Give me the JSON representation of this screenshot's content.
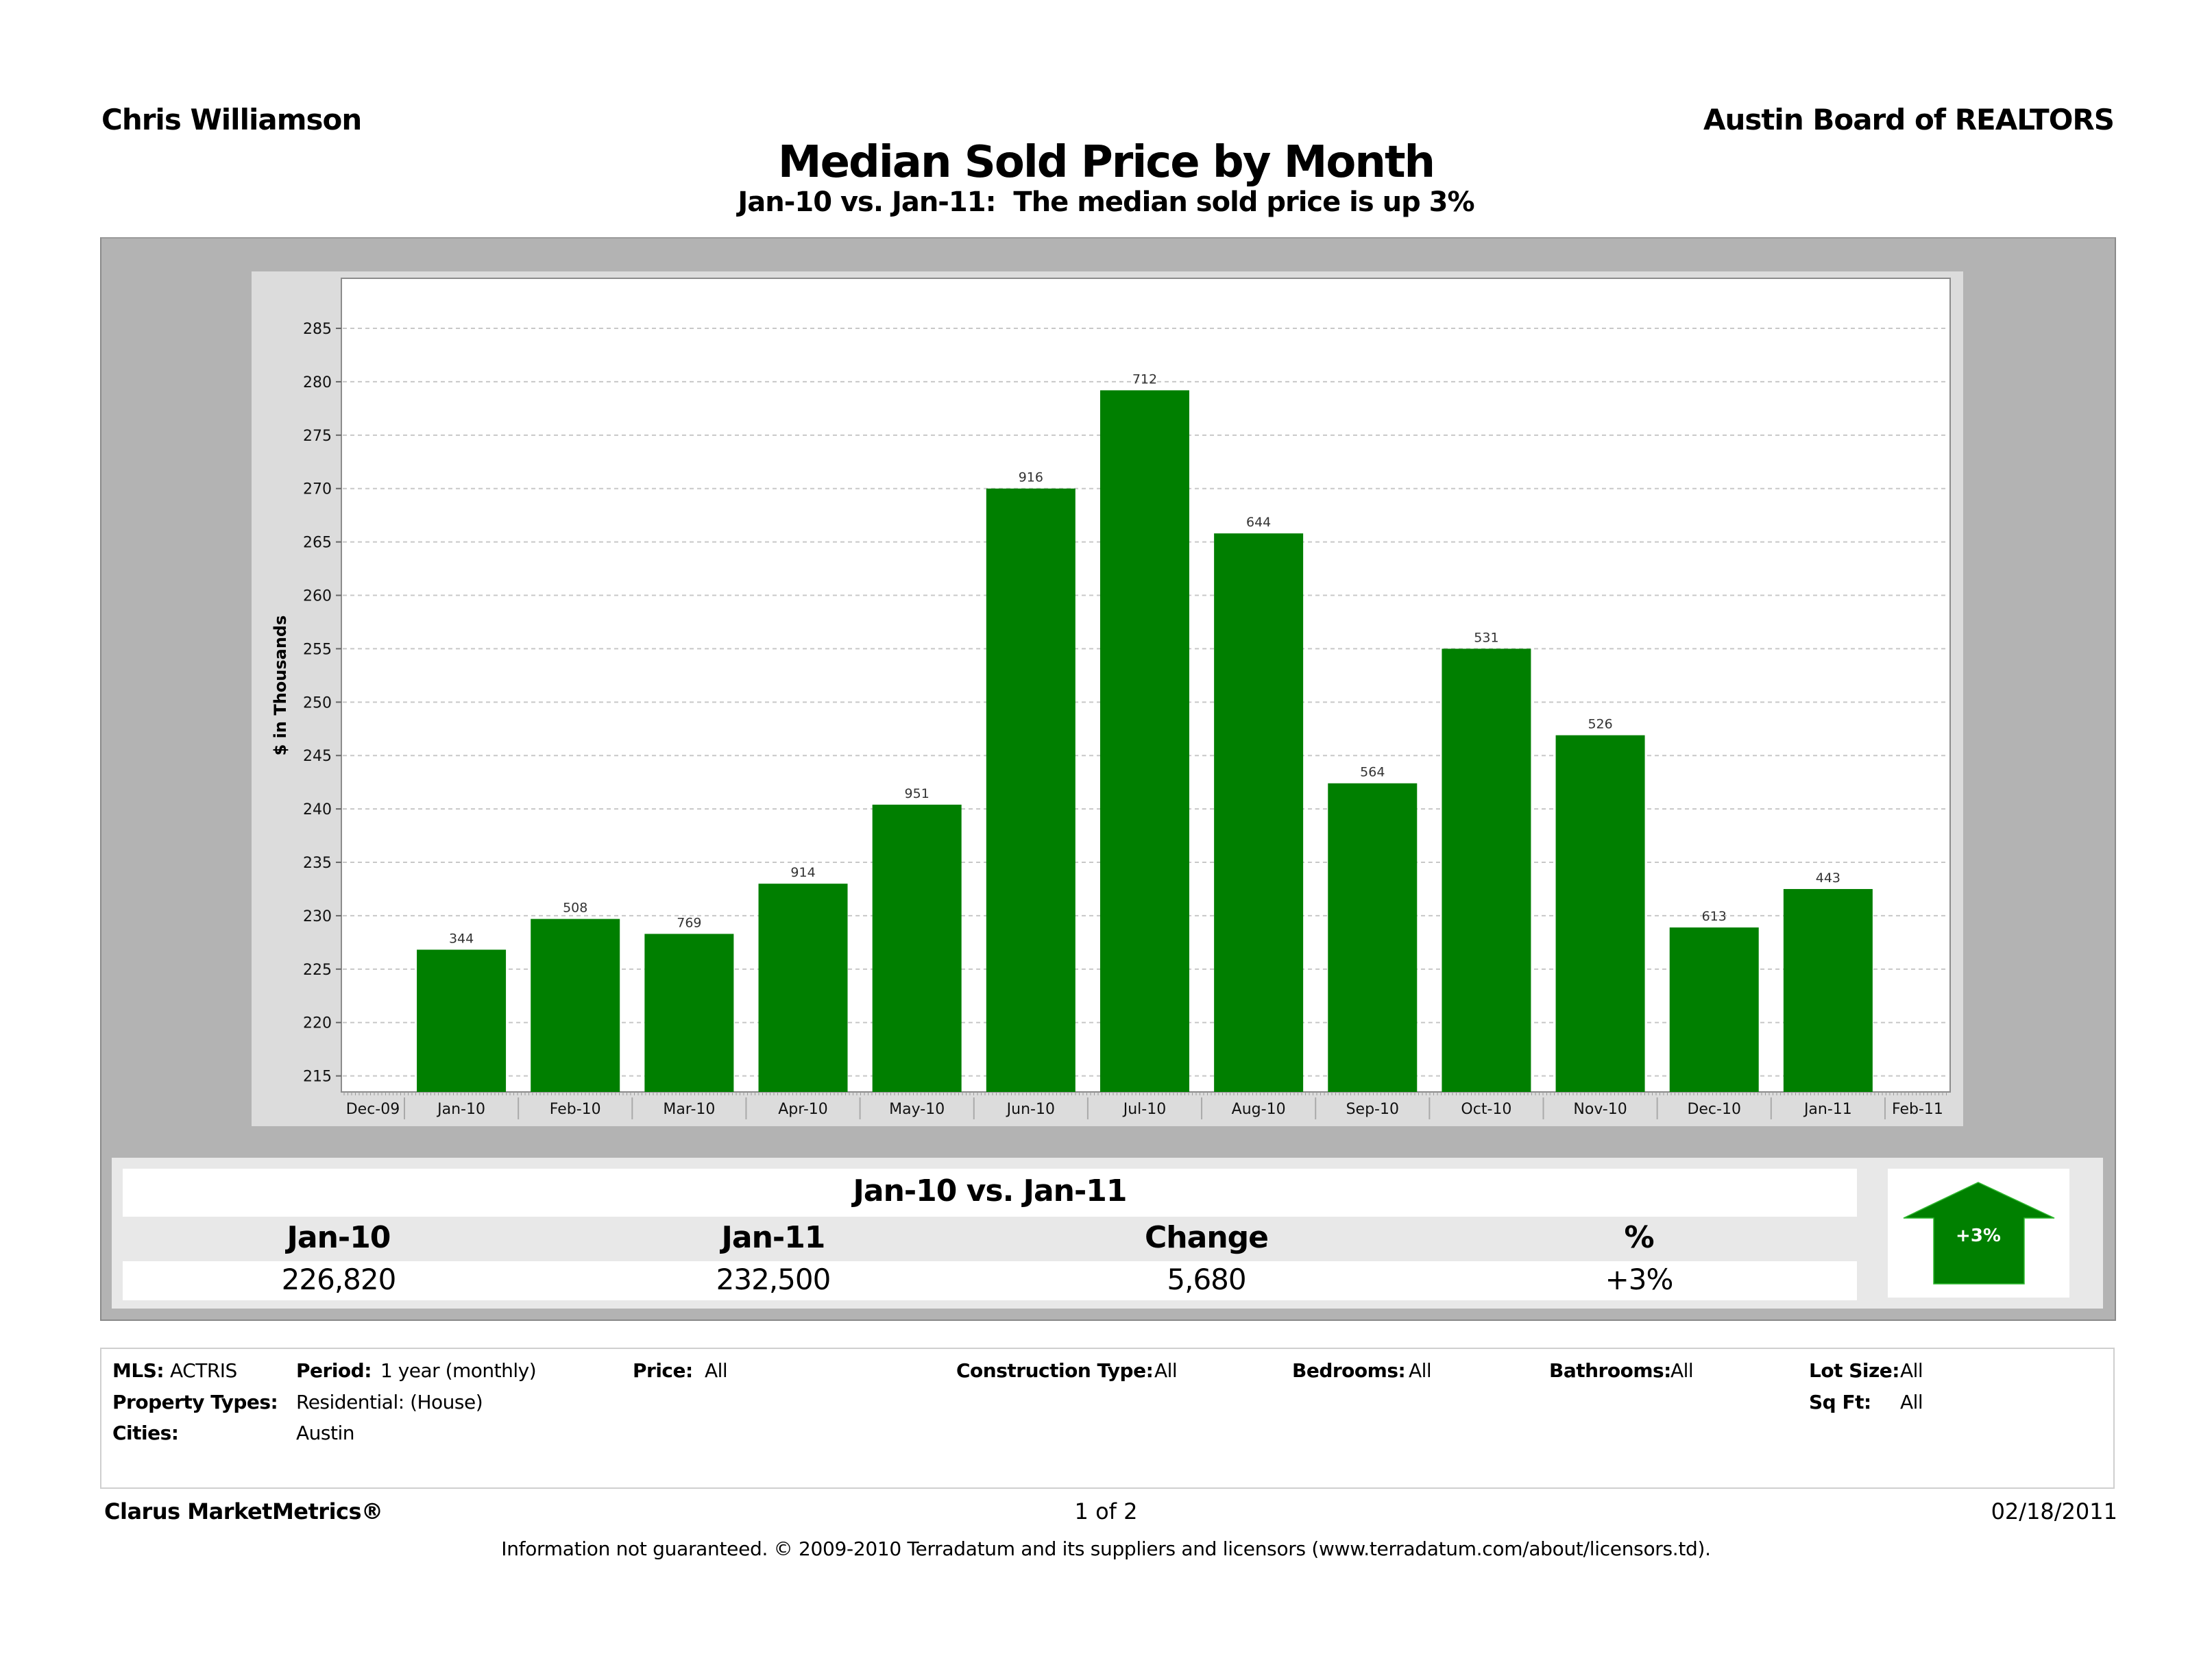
{
  "header": {
    "author": "Chris Williamson",
    "organization": "Austin Board of REALTORS",
    "title": "Median Sold Price by Month",
    "subtitle": "Jan-10 vs. Jan-11:  The median sold price is up 3%"
  },
  "chart_data": {
    "type": "bar",
    "title": "Median Sold Price by Month",
    "xlabel": "",
    "ylabel": "$ in Thousands",
    "ylim": [
      213.5,
      288
    ],
    "grid": true,
    "yticks": [
      215,
      220,
      225,
      230,
      235,
      240,
      245,
      250,
      255,
      260,
      265,
      270,
      275,
      280,
      285
    ],
    "xtick_labels": [
      "Dec-09",
      "Jan-10",
      "Feb-10",
      "Mar-10",
      "Apr-10",
      "May-10",
      "Jun-10",
      "Jul-10",
      "Aug-10",
      "Sep-10",
      "Oct-10",
      "Nov-10",
      "Dec-10",
      "Jan-11",
      "Feb-11"
    ],
    "categories": [
      "Jan-10",
      "Feb-10",
      "Mar-10",
      "Apr-10",
      "May-10",
      "Jun-10",
      "Jul-10",
      "Aug-10",
      "Sep-10",
      "Oct-10",
      "Nov-10",
      "Dec-10",
      "Jan-11"
    ],
    "values": [
      226.82,
      229.7,
      228.3,
      233.0,
      240.4,
      270.0,
      279.2,
      265.8,
      242.4,
      255.0,
      246.9,
      228.9,
      232.5
    ],
    "bar_labels": [
      "344",
      "508",
      "769",
      "914",
      "951",
      "916",
      "712",
      "644",
      "564",
      "531",
      "526",
      "613",
      "443"
    ],
    "bar_color": "#007f00"
  },
  "summary": {
    "title": "Jan-10 vs. Jan-11",
    "headers": [
      "Jan-10",
      "Jan-11",
      "Change",
      "%"
    ],
    "values": [
      "226,820",
      "232,500",
      "5,680",
      "+3%"
    ],
    "badge": "+3%",
    "badge_color": "#008000"
  },
  "filters": {
    "mls_label": "MLS:",
    "mls_value": "ACTRIS",
    "period_label": "Period:",
    "period_value": "1 year (monthly)",
    "price_label": "Price:",
    "price_value": "All",
    "construction_label": "Construction Type:",
    "construction_value": "All",
    "bedrooms_label": "Bedrooms:",
    "bedrooms_value": "All",
    "bathrooms_label": "Bathrooms:",
    "bathrooms_value": "All",
    "lotsize_label": "Lot Size:",
    "lotsize_value": "All",
    "sqft_label": "Sq Ft:",
    "sqft_value": "All",
    "proptypes_label": "Property Types:",
    "proptypes_value": "Residential: (House)",
    "cities_label": "Cities:",
    "cities_value": "Austin"
  },
  "footer": {
    "brand": "Clarus MarketMetrics®",
    "page": "1 of 2",
    "date": "02/18/2011",
    "disclaimer": "Information not guaranteed.  © 2009-2010 Terradatum and its suppliers and licensors (www.terradatum.com/about/licensors.td)."
  }
}
